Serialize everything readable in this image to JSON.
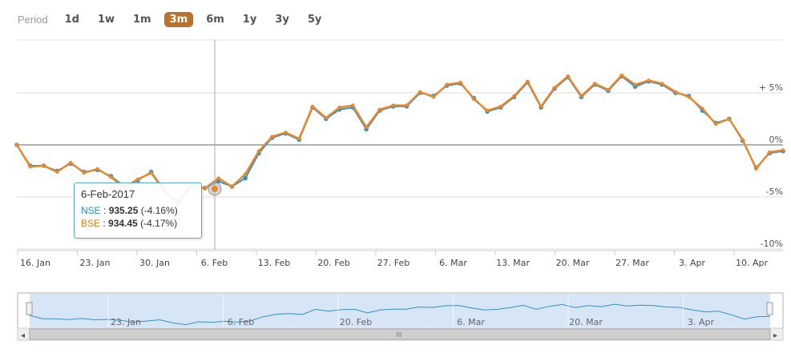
{
  "period": {
    "label": "Period",
    "options": [
      "1d",
      "1w",
      "1m",
      "3m",
      "6m",
      "1y",
      "3y",
      "5y"
    ],
    "active": "3m"
  },
  "colors": {
    "nse": "#3a8fc4",
    "bse": "#e8892b",
    "active_period": "#b8732f",
    "navigator_fill": "#cfe2f5"
  },
  "chart_data": {
    "type": "line",
    "x_tick_labels": [
      "16. Jan",
      "23. Jan",
      "30. Jan",
      "6. Feb",
      "13. Feb",
      "20. Feb",
      "27. Feb",
      "6. Mar",
      "13. Mar",
      "20. Mar",
      "27. Mar",
      "3. Apr",
      "10. Apr"
    ],
    "y_tick_labels": [
      "+ 5%",
      "0%",
      "-5%",
      "-10%"
    ],
    "y_ticks": [
      5,
      0,
      -5,
      -10
    ],
    "ylim": [
      -10,
      10
    ],
    "grid": true,
    "crosshair_date": "6-Feb-2017",
    "series": [
      {
        "name": "NSE",
        "values": [
          0,
          -2.0,
          -2.0,
          -2.5,
          -1.8,
          -2.6,
          -2.4,
          -3.0,
          -4.0,
          -3.4,
          -2.6,
          -4.4,
          -5.5,
          -3.8,
          -4.16,
          -3.5,
          -4.0,
          -3.2,
          -0.8,
          0.7,
          1.1,
          0.5,
          3.6,
          2.5,
          3.4,
          3.6,
          1.5,
          3.3,
          3.7,
          3.7,
          5.0,
          4.7,
          5.7,
          5.9,
          4.5,
          3.2,
          3.6,
          4.6,
          6.0,
          3.6,
          5.4,
          6.5,
          4.6,
          5.8,
          5.2,
          6.6,
          5.6,
          6.1,
          5.8,
          5.0,
          4.7,
          3.3,
          2.1,
          2.5,
          0.4,
          -2.2,
          -0.8,
          -0.6
        ]
      },
      {
        "name": "BSE",
        "values": [
          0,
          -2.1,
          -2.0,
          -2.6,
          -1.7,
          -2.7,
          -2.3,
          -3.1,
          -4.1,
          -3.3,
          -2.7,
          -4.5,
          -5.6,
          -3.9,
          -4.17,
          -3.2,
          -4.0,
          -2.8,
          -0.6,
          0.8,
          1.2,
          0.6,
          3.7,
          2.6,
          3.6,
          3.8,
          1.7,
          3.4,
          3.8,
          3.8,
          5.1,
          4.6,
          5.8,
          6.0,
          4.4,
          3.3,
          3.7,
          4.7,
          6.1,
          3.7,
          5.5,
          6.6,
          4.7,
          5.9,
          5.3,
          6.7,
          5.8,
          6.2,
          5.9,
          5.1,
          4.6,
          3.5,
          2.0,
          2.5,
          0.5,
          -2.3,
          -0.7,
          -0.5
        ]
      }
    ],
    "navigator": {
      "x_tick_labels": [
        "23. Jan",
        "6. Feb",
        "20. Feb",
        "6. Mar",
        "20. Mar",
        "3. Apr"
      ]
    }
  },
  "tooltip": {
    "date": "6-Feb-2017",
    "nse_label": "NSE",
    "nse_value": "935.25",
    "nse_change": "(-4.16%)",
    "bse_label": "BSE",
    "bse_value": "934.45",
    "bse_change": "(-4.17%)"
  },
  "scrollbar": {
    "left_arrow": "◂",
    "right_arrow": "▸",
    "grip": "III"
  }
}
